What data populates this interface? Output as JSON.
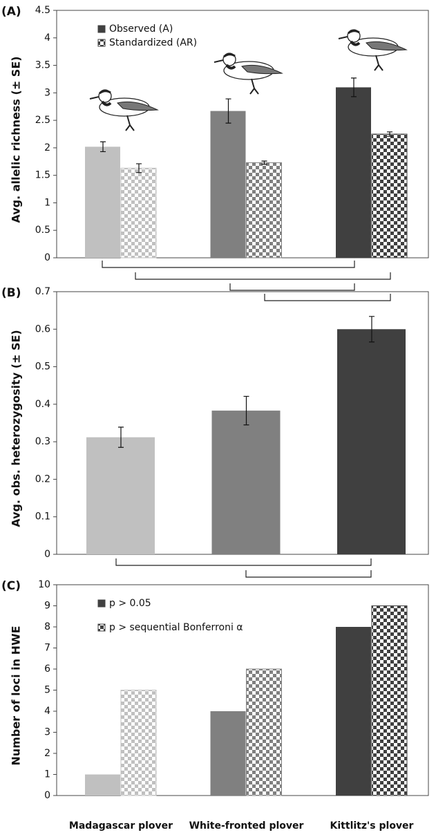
{
  "chart_data": [
    {
      "type": "bar",
      "panel_label": "(A)",
      "ylabel": "Avg. allelic richness (± SE)",
      "ylim": [
        0,
        4.5
      ],
      "yticks": [
        0,
        0.5,
        1,
        1.5,
        2,
        2.5,
        3,
        3.5,
        4,
        4.5
      ],
      "category_colors": [
        "#c0c0c0",
        "#808080",
        "#404040"
      ],
      "legend": "upper left",
      "series": [
        {
          "name": "Observed (A)",
          "pattern": "solid",
          "values": [
            2.02,
            2.67,
            3.1
          ],
          "errors": [
            0.09,
            0.22,
            0.17
          ]
        },
        {
          "name": "Standardized (AR)",
          "pattern": "checker",
          "values": [
            1.63,
            1.73,
            2.25
          ],
          "errors": [
            0.08,
            0.03,
            0.04
          ]
        }
      ]
    },
    {
      "type": "bar",
      "panel_label": "(B)",
      "ylabel": "Avg. obs. heterozygosity (± SE)",
      "ylim": [
        0,
        0.7
      ],
      "yticks": [
        0,
        0.1,
        0.2,
        0.3,
        0.4,
        0.5,
        0.6,
        0.7
      ],
      "category_colors": [
        "#c0c0c0",
        "#808080",
        "#404040"
      ],
      "series": [
        {
          "pattern": "solid",
          "values": [
            0.312,
            0.383,
            0.6
          ],
          "errors": [
            0.027,
            0.038,
            0.034
          ]
        }
      ]
    },
    {
      "type": "bar",
      "panel_label": "(C)",
      "ylabel": "Number of loci in HWE",
      "ylim": [
        0,
        10
      ],
      "yticks": [
        0,
        1,
        2,
        3,
        4,
        5,
        6,
        7,
        8,
        9,
        10
      ],
      "categories": [
        "Madagascar plover",
        "White-fronted plover",
        "Kittlitz's plover"
      ],
      "category_colors": [
        "#c0c0c0",
        "#808080",
        "#404040"
      ],
      "legend": "upper left",
      "series": [
        {
          "name": "p > 0.05",
          "pattern": "solid",
          "values": [
            1,
            4,
            8
          ]
        },
        {
          "name": "p > sequential Bonferroni α",
          "pattern": "checker",
          "values": [
            5,
            6,
            9
          ]
        }
      ]
    }
  ]
}
